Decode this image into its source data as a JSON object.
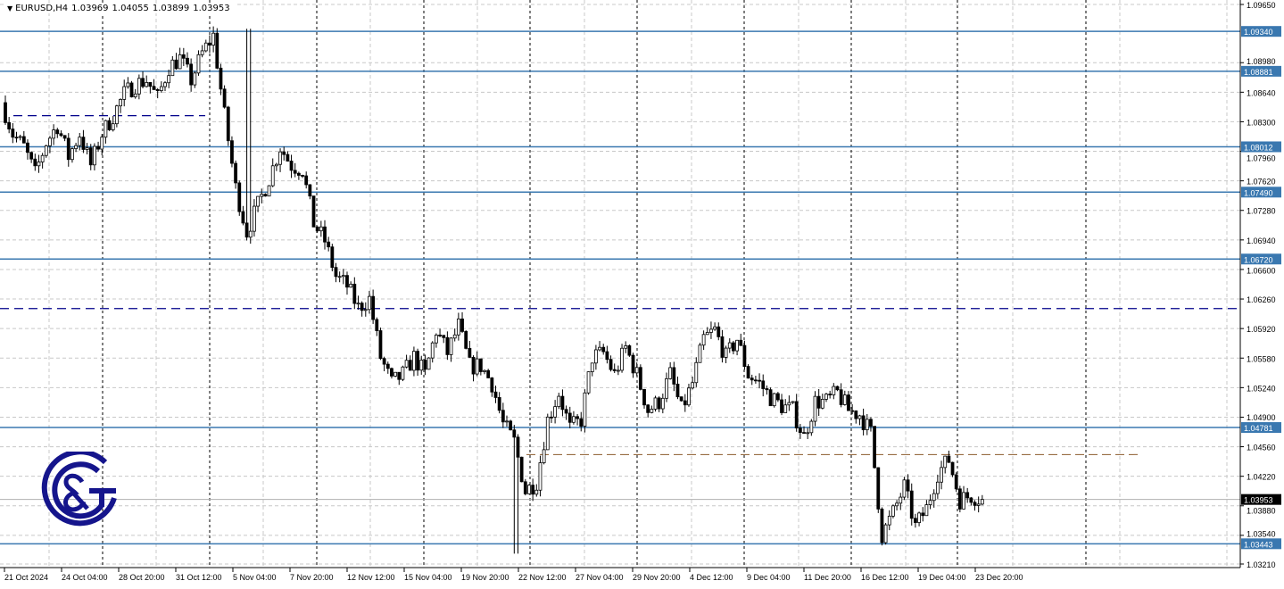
{
  "header": {
    "menu_icon": "triangle-down-icon",
    "symbol": "EURUSD,H4",
    "open": "1.03969",
    "high": "1.04055",
    "low": "1.03899",
    "close": "1.03953"
  },
  "colors": {
    "level_line": "#3a78b0",
    "dashed_level": "#00008b",
    "brown_dashed": "#8b5a2b",
    "current_price_bg": "#000000",
    "logo": "#15158c"
  },
  "chart_data": {
    "type": "candlestick",
    "symbol": "EURUSD",
    "timeframe": "H4",
    "ylim": [
      1.0321,
      1.0965
    ],
    "y_ticks": [
      "1.09650",
      "1.08980",
      "1.08640",
      "1.08300",
      "1.07960",
      "1.07620",
      "1.07280",
      "1.06940",
      "1.06600",
      "1.06260",
      "1.05920",
      "1.05580",
      "1.05240",
      "1.04900",
      "1.04560",
      "1.04220",
      "1.03880",
      "1.03540",
      "1.03210"
    ],
    "x_ticks": [
      "21 Oct 2024",
      "24 Oct 04:00",
      "28 Oct 20:00",
      "31 Oct 12:00",
      "5 Nov 04:00",
      "7 Nov 20:00",
      "12 Nov 12:00",
      "15 Nov 04:00",
      "19 Nov 20:00",
      "22 Nov 12:00",
      "27 Nov 04:00",
      "29 Nov 20:00",
      "4 Dec 12:00",
      "9 Dec 04:00",
      "11 Dec 20:00",
      "16 Dec 12:00",
      "19 Dec 04:00",
      "23 Dec 20:00"
    ],
    "approx_close_path": [
      1.0852,
      1.0816,
      1.0801,
      1.077,
      1.0806,
      1.0826,
      1.079,
      1.0816,
      1.078,
      1.0816,
      1.0837,
      1.0862,
      1.0873,
      1.0878,
      1.0857,
      1.0893,
      1.0903,
      1.0878,
      1.0909,
      1.0929,
      1.0837,
      1.0754,
      1.0703,
      1.0734,
      1.0765,
      1.0801,
      1.078,
      1.0775,
      1.0713,
      1.0693,
      1.0652,
      1.0641,
      1.0616,
      1.0626,
      1.0559,
      1.0529,
      1.0539,
      1.0559,
      1.0539,
      1.059,
      1.0564,
      1.0595,
      1.0549,
      1.0549,
      1.0529,
      1.0482,
      1.0462,
      1.0405,
      1.0416,
      1.0487,
      1.0518,
      1.0477,
      1.0487,
      1.0559,
      1.0564,
      1.0539,
      1.057,
      1.0539,
      1.0498,
      1.0508,
      1.0539,
      1.0498,
      1.0529,
      1.058,
      1.059,
      1.0559,
      1.058,
      1.0539,
      1.0529,
      1.0513,
      1.0503,
      1.0498,
      1.0467,
      1.0508,
      1.0508,
      1.0518,
      1.0498,
      1.0493,
      1.0472,
      1.0354,
      1.038,
      1.041,
      1.0364,
      1.0385,
      1.0426,
      1.0441,
      1.0395,
      1.04,
      1.03953
    ],
    "extremes": {
      "high": 1.0937,
      "low": 1.0333
    },
    "levels_solid": [
      "1.09340",
      "1.08881",
      "1.08012",
      "1.07490",
      "1.06720",
      "1.04781",
      "1.03443"
    ],
    "levels_dashed_blue": [
      1.0837,
      1.0615
    ],
    "level_dashed_brown": 1.0447,
    "current_price": "1.03953"
  }
}
